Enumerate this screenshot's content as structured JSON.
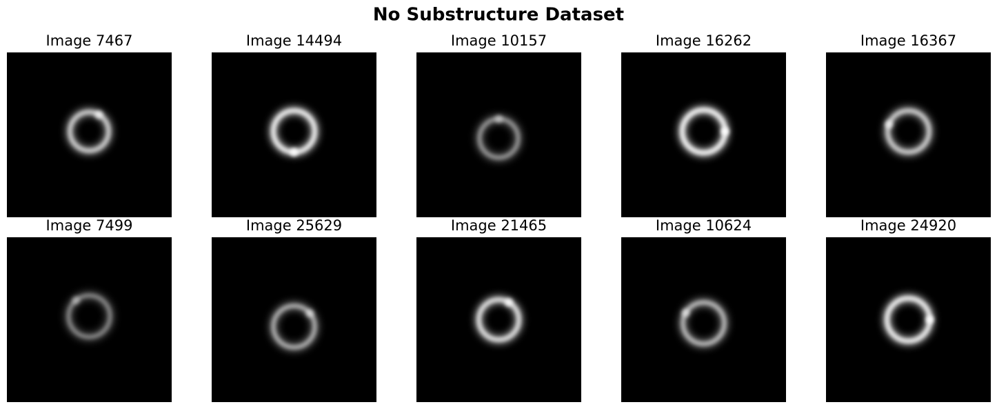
{
  "title": "No Substructure Dataset",
  "images": [
    {
      "title": "Image 7467"
    },
    {
      "title": "Image 14494"
    },
    {
      "title": "Image 10157"
    },
    {
      "title": "Image 16262"
    },
    {
      "title": "Image 16367"
    },
    {
      "title": "Image 7499"
    },
    {
      "title": "Image 25629"
    },
    {
      "title": "Image 21465"
    },
    {
      "title": "Image 10624"
    },
    {
      "title": "Image 24920"
    }
  ]
}
